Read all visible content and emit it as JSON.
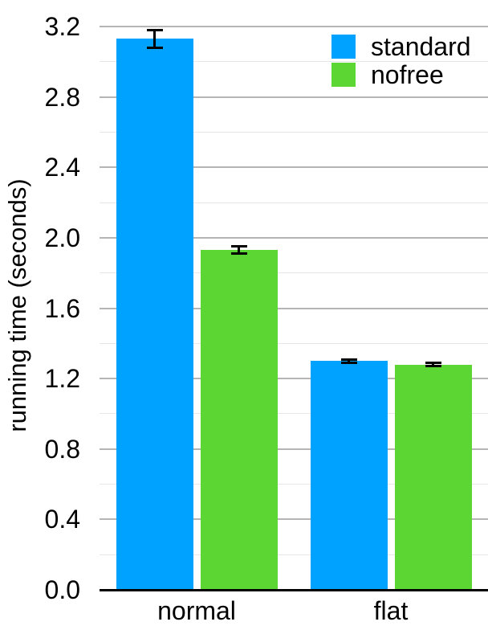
{
  "chart_data": {
    "type": "bar",
    "title": "",
    "categories": [
      "normal",
      "flat"
    ],
    "series": [
      {
        "name": "standard",
        "color": "#00A2FF",
        "values": [
          3.13,
          1.3
        ],
        "errors": [
          0.05,
          0.01
        ]
      },
      {
        "name": "nofree",
        "color": "#5CD633",
        "values": [
          1.93,
          1.28
        ],
        "errors": [
          0.02,
          0.01
        ]
      }
    ],
    "xlabel": "",
    "ylabel": "running time (seconds)",
    "ylim": [
      0.0,
      3.2
    ],
    "ytick_major_step": 0.4,
    "ytick_minor_step": 0.2,
    "ytick_labels": [
      "0.0",
      "0.4",
      "0.8",
      "1.2",
      "1.6",
      "2.0",
      "2.4",
      "2.8",
      "3.2"
    ],
    "grid": true,
    "error_bars": true,
    "legend_position": "top-right",
    "colors": {
      "major_gridline": "#b5b5b5",
      "minor_gridline": "#e7e7e7",
      "axis_line": "#000000",
      "text": "#000000",
      "background": "#ffffff"
    }
  }
}
